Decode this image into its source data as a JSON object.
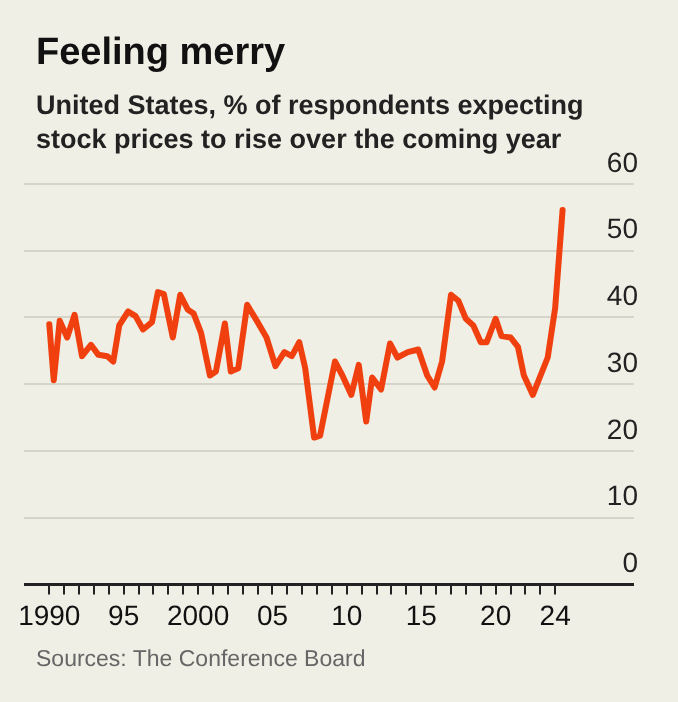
{
  "chart_data": {
    "type": "line",
    "title": "Feeling merry",
    "subtitle": "United States, % of respondents expecting stock prices to rise over the coming year",
    "x": [
      1990.0,
      1990.3,
      1990.7,
      1991.2,
      1991.7,
      1992.2,
      1992.8,
      1993.3,
      1993.9,
      1994.3,
      1994.7,
      1995.3,
      1995.8,
      1996.3,
      1996.9,
      1997.3,
      1997.7,
      1998.3,
      1998.8,
      1999.3,
      1999.7,
      2000.2,
      2000.8,
      2001.2,
      2001.8,
      2002.2,
      2002.7,
      2003.3,
      2004.0,
      2004.6,
      2005.2,
      2005.8,
      2006.3,
      2006.8,
      2007.2,
      2007.8,
      2008.2,
      2009.2,
      2009.7,
      2010.3,
      2010.8,
      2011.3,
      2011.7,
      2012.3,
      2012.9,
      2013.4,
      2014.1,
      2014.8,
      2015.4,
      2015.9,
      2016.4,
      2017.0,
      2017.5,
      2018.0,
      2018.5,
      2019.0,
      2019.4,
      2020.0,
      2020.4,
      2021.0,
      2021.5,
      2021.9,
      2022.5,
      2023.5,
      2024.0,
      2024.5
    ],
    "series": [
      {
        "color": "#f0400f",
        "values": [
          39,
          30.6,
          39.5,
          37,
          40.4,
          34.2,
          35.9,
          34.4,
          34.2,
          33.4,
          38.8,
          40.9,
          40.2,
          38.2,
          39.3,
          43.8,
          43.5,
          37,
          43.4,
          41.2,
          40.6,
          37.7,
          31.3,
          31.9,
          39.1,
          31.9,
          32.4,
          41.9,
          39.3,
          37,
          32.7,
          34.8,
          34.2,
          36.3,
          32.4,
          22,
          22.3,
          33.4,
          31.3,
          28.4,
          32.9,
          24.4,
          31,
          29.2,
          36.1,
          34,
          34.8,
          35.2,
          31.3,
          29.5,
          33.4,
          43.4,
          42.5,
          39.8,
          38.8,
          36.3,
          36.3,
          39.8,
          37.2,
          37,
          35.6,
          31.3,
          28.4,
          34,
          41.4,
          56.1
        ]
      }
    ],
    "xlim": [
      1988.3,
      2029.3
    ],
    "xticks": [
      {
        "value": 1990,
        "label": "1990"
      },
      {
        "value": 1991,
        "label": null
      },
      {
        "value": 1992,
        "label": null
      },
      {
        "value": 1993,
        "label": null
      },
      {
        "value": 1994,
        "label": null
      },
      {
        "value": 1995,
        "label": "95"
      },
      {
        "value": 1996,
        "label": null
      },
      {
        "value": 1997,
        "label": null
      },
      {
        "value": 1998,
        "label": null
      },
      {
        "value": 1999,
        "label": null
      },
      {
        "value": 2000,
        "label": "2000"
      },
      {
        "value": 2001,
        "label": null
      },
      {
        "value": 2002,
        "label": null
      },
      {
        "value": 2003,
        "label": null
      },
      {
        "value": 2004,
        "label": null
      },
      {
        "value": 2005,
        "label": "05"
      },
      {
        "value": 2006,
        "label": null
      },
      {
        "value": 2007,
        "label": null
      },
      {
        "value": 2008,
        "label": null
      },
      {
        "value": 2009,
        "label": null
      },
      {
        "value": 2010,
        "label": "10"
      },
      {
        "value": 2011,
        "label": null
      },
      {
        "value": 2012,
        "label": null
      },
      {
        "value": 2013,
        "label": null
      },
      {
        "value": 2014,
        "label": null
      },
      {
        "value": 2015,
        "label": "15"
      },
      {
        "value": 2016,
        "label": null
      },
      {
        "value": 2017,
        "label": null
      },
      {
        "value": 2018,
        "label": null
      },
      {
        "value": 2019,
        "label": null
      },
      {
        "value": 2020,
        "label": "20"
      },
      {
        "value": 2021,
        "label": null
      },
      {
        "value": 2022,
        "label": null
      },
      {
        "value": 2023,
        "label": null
      },
      {
        "value": 2024,
        "label": "24"
      }
    ],
    "ylim": [
      0,
      60
    ],
    "yticks": [
      0,
      10,
      20,
      30,
      40,
      50,
      60
    ],
    "grid": "y",
    "annotations": [
      "Sources: The Conference Board"
    ]
  }
}
